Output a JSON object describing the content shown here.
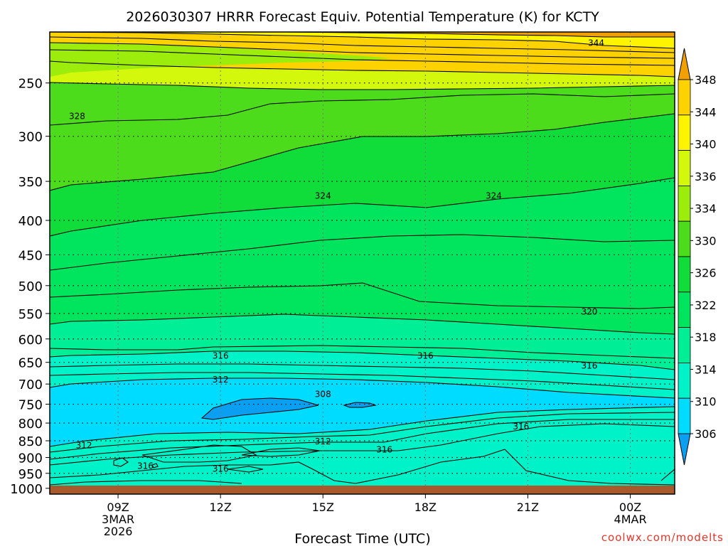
{
  "chart_data": {
    "type": "contour",
    "title": "2026030307 HRRR Forecast Equiv. Potential Temperature (K) for KCTY",
    "xlabel": "Forecast Time (UTC)",
    "ylabel": "",
    "x_range_hours": [
      7,
      25.3
    ],
    "y_range_hpa": [
      1020,
      210
    ],
    "y_ticks": [
      250,
      300,
      350,
      400,
      450,
      500,
      550,
      600,
      650,
      700,
      750,
      800,
      850,
      900,
      950,
      1000
    ],
    "x_ticks": [
      {
        "hour": 9,
        "labels": [
          "09Z",
          "3MAR",
          "2026"
        ]
      },
      {
        "hour": 12,
        "labels": [
          "12Z"
        ]
      },
      {
        "hour": 15,
        "labels": [
          "15Z"
        ]
      },
      {
        "hour": 18,
        "labels": [
          "18Z"
        ]
      },
      {
        "hour": 21,
        "labels": [
          "21Z"
        ]
      },
      {
        "hour": 24,
        "labels": [
          "00Z",
          "4MAR"
        ]
      }
    ],
    "colorbar": {
      "levels": [
        306,
        310,
        314,
        318,
        322,
        326,
        330,
        334,
        336,
        340,
        344,
        348
      ],
      "level_labels": [
        "306",
        "310",
        "314",
        "318",
        "322",
        "326",
        "330",
        "334",
        "336",
        "340",
        "344",
        "348"
      ],
      "colors": [
        "#0a9ff0",
        "#00dcff",
        "#00f2c8",
        "#00ee96",
        "#00e45e",
        "#10dc3a",
        "#4cdc1c",
        "#9cec0c",
        "#d4f80c",
        "#fcf400",
        "#fcd200",
        "#f0a000"
      ]
    },
    "contour_labels": [
      {
        "text": "344",
        "hour": 23.0,
        "hpa": 218
      },
      {
        "text": "328",
        "hour": 7.8,
        "hpa": 280
      },
      {
        "text": "324",
        "hour": 15.0,
        "hpa": 368
      },
      {
        "text": "324",
        "hour": 20.0,
        "hpa": 368
      },
      {
        "text": "320",
        "hour": 22.8,
        "hpa": 547
      },
      {
        "text": "316",
        "hour": 12.0,
        "hpa": 636
      },
      {
        "text": "316",
        "hour": 18.0,
        "hpa": 636
      },
      {
        "text": "316",
        "hour": 22.8,
        "hpa": 658
      },
      {
        "text": "312",
        "hour": 12.0,
        "hpa": 690
      },
      {
        "text": "308",
        "hour": 15.0,
        "hpa": 725
      },
      {
        "text": "316",
        "hour": 20.8,
        "hpa": 810
      },
      {
        "text": "312",
        "hour": 8.0,
        "hpa": 864
      },
      {
        "text": "312",
        "hour": 15.0,
        "hpa": 852
      },
      {
        "text": "316",
        "hour": 16.8,
        "hpa": 876
      },
      {
        "text": "316",
        "hour": 9.8,
        "hpa": 927
      },
      {
        "text": "316",
        "hour": 12.0,
        "hpa": 936
      }
    ],
    "ground_color": "#a85a2c",
    "watermark": "coolwx.com/modelts"
  }
}
